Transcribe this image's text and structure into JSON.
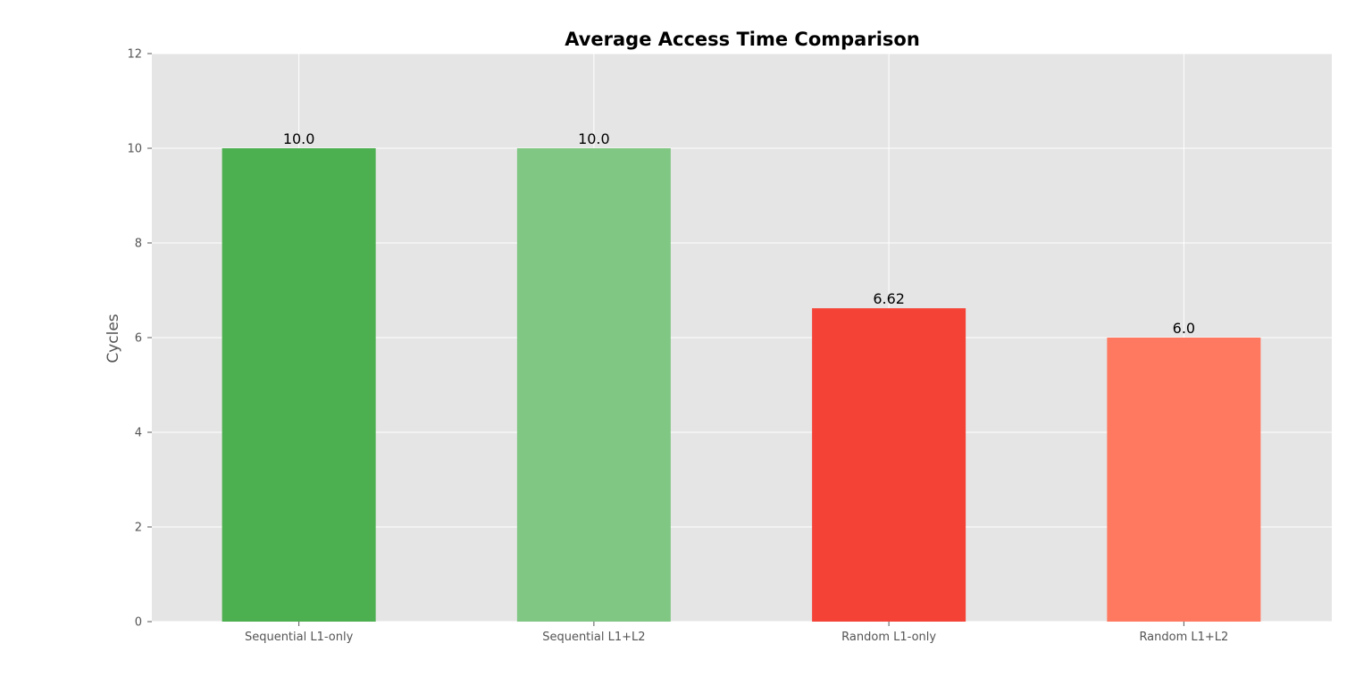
{
  "chart_data": {
    "type": "bar",
    "title": "Average Access Time Comparison",
    "xlabel": "",
    "ylabel": "Cycles",
    "categories": [
      "Sequential L1-only",
      "Sequential L1+L2",
      "Random L1-only",
      "Random L1+L2"
    ],
    "values": [
      10.0,
      10.0,
      6.62,
      6.0
    ],
    "value_labels": [
      "10.0",
      "10.0",
      "6.62",
      "6.0"
    ],
    "colors": [
      "#4caf50",
      "#81c784",
      "#f44336",
      "#ff7961"
    ],
    "ylim": [
      0,
      12
    ],
    "yticks": [
      0,
      2,
      4,
      6,
      8,
      10,
      12
    ],
    "grid": true,
    "legend": "none"
  },
  "style": {
    "plot_background": "#e5e5e5",
    "grid_color": "#ffffff",
    "tick_color": "#555555",
    "title_color": "#000000"
  }
}
